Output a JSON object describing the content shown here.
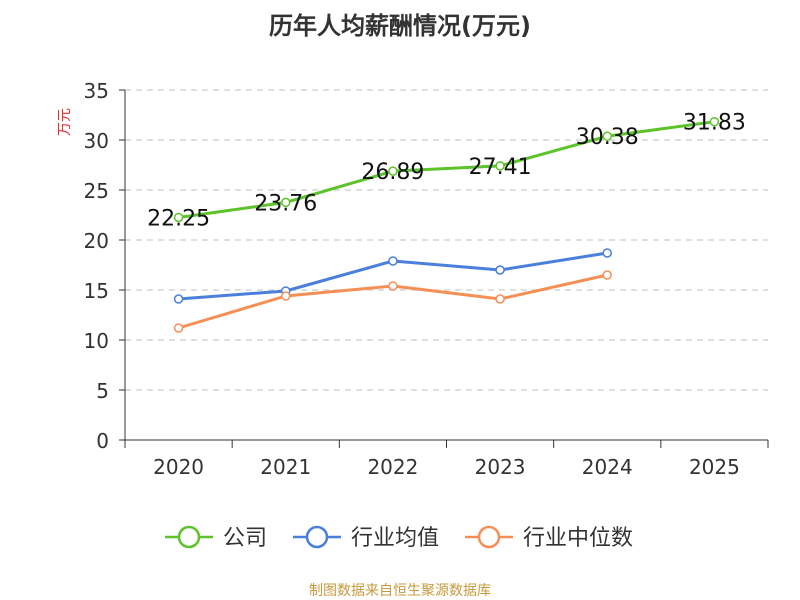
{
  "chart_data": {
    "type": "line",
    "title": "历年人均薪酬情况(万元)",
    "ylabel": "万元",
    "xlabel": "",
    "categories": [
      "2020",
      "2021",
      "2022",
      "2023",
      "2024",
      "2025"
    ],
    "ylim": [
      0,
      35
    ],
    "yticks": [
      0,
      5,
      10,
      15,
      20,
      25,
      30,
      35
    ],
    "grid": "horizontal dashed",
    "legend_position": "bottom",
    "series": [
      {
        "name": "公司",
        "color": "#5cc32b",
        "values": [
          22.25,
          23.76,
          26.89,
          27.41,
          30.38,
          31.83
        ],
        "labels": [
          "22.25",
          "23.76",
          "26.89",
          "27.41",
          "30.38",
          "31.83"
        ]
      },
      {
        "name": "行业均值",
        "color": "#4a7fdc",
        "values": [
          14.1,
          14.9,
          17.9,
          17.0,
          18.7,
          null
        ]
      },
      {
        "name": "行业中位数",
        "color": "#f58f55",
        "values": [
          11.2,
          14.4,
          15.4,
          14.1,
          16.5,
          null
        ]
      }
    ],
    "source": "制图数据来自恒生聚源数据库"
  },
  "colors": {
    "title": "#333333",
    "axis": "#333333",
    "grid": "#cccccc",
    "ylabel": "#e03030",
    "source": "#c89a3c"
  }
}
